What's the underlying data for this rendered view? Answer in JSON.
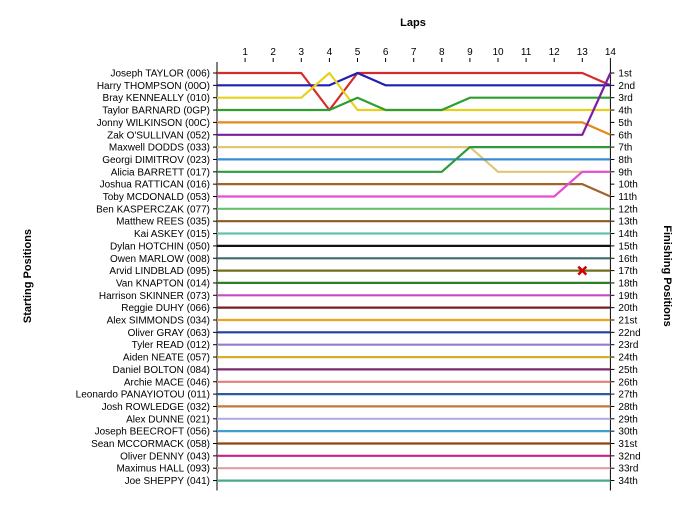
{
  "chart_data": {
    "type": "line",
    "title": "",
    "xlabel": "Laps",
    "ylabel_left": "Starting Positions",
    "ylabel_right": "Finishing Positions",
    "laps": [
      1,
      2,
      3,
      4,
      5,
      6,
      7,
      8,
      9,
      10,
      11,
      12,
      13,
      14
    ],
    "finishing_labels": [
      "1st",
      "2nd",
      "3rd",
      "4th",
      "5th",
      "6th",
      "7th",
      "8th",
      "9th",
      "10th",
      "11th",
      "12th",
      "13th",
      "14th",
      "15th",
      "16th",
      "17th",
      "18th",
      "19th",
      "20th",
      "21st",
      "22nd",
      "23rd",
      "24th",
      "25th",
      "26th",
      "27th",
      "28th",
      "29th",
      "30th",
      "31st",
      "32nd",
      "33rd",
      "34th"
    ],
    "drivers": [
      {
        "name": "Joseph TAYLOR (006)",
        "color": "#d42b2b",
        "positions": [
          1,
          1,
          1,
          4,
          1,
          1,
          1,
          1,
          1,
          1,
          1,
          1,
          1,
          2
        ]
      },
      {
        "name": "Harry THOMPSON (00O)",
        "color": "#1f1fb4",
        "positions": [
          2,
          2,
          2,
          2,
          1,
          2,
          2,
          2,
          2,
          2,
          2,
          2,
          2,
          2
        ]
      },
      {
        "name": "Bray KENNEALLY (010)",
        "color": "#e6d21e",
        "positions": [
          3,
          3,
          3,
          1,
          4,
          4,
          4,
          4,
          4,
          4,
          4,
          4,
          4,
          4
        ]
      },
      {
        "name": "Taylor BARNARD (0GP)",
        "color": "#2e9e2e",
        "positions": [
          4,
          4,
          4,
          4,
          3,
          4,
          4,
          4,
          3,
          3,
          3,
          3,
          3,
          3
        ]
      },
      {
        "name": "Jonny WILKINSON (00C)",
        "color": "#e8861a",
        "positions": [
          5,
          5,
          5,
          5,
          5,
          5,
          5,
          5,
          5,
          5,
          5,
          5,
          5,
          6
        ]
      },
      {
        "name": "Zak O'SULLIVAN (052)",
        "color": "#7a1f9e",
        "positions": [
          6,
          6,
          6,
          6,
          6,
          6,
          6,
          6,
          6,
          6,
          6,
          6,
          6,
          1
        ]
      },
      {
        "name": "Maxwell DODDS (033)",
        "color": "#e0c676",
        "positions": [
          7,
          7,
          7,
          7,
          7,
          7,
          7,
          7,
          7,
          9,
          9,
          9,
          9,
          9
        ]
      },
      {
        "name": "Georgi DIMITROV (023)",
        "color": "#3a8bd1",
        "positions": [
          8,
          8,
          8,
          8,
          8,
          8,
          8,
          8,
          8,
          8,
          8,
          8,
          8,
          8
        ]
      },
      {
        "name": "Alicia BARRETT (017)",
        "color": "#2d9b3a",
        "positions": [
          9,
          9,
          9,
          9,
          9,
          9,
          9,
          9,
          7,
          7,
          7,
          7,
          7,
          7
        ]
      },
      {
        "name": "Joshua RATTICAN (016)",
        "color": "#a0642a",
        "positions": [
          10,
          10,
          10,
          10,
          10,
          10,
          10,
          10,
          10,
          10,
          10,
          10,
          10,
          11
        ]
      },
      {
        "name": "Toby MCDONALD (053)",
        "color": "#e64cd6",
        "positions": [
          11,
          11,
          11,
          11,
          11,
          11,
          11,
          11,
          11,
          11,
          11,
          11,
          9,
          9
        ]
      },
      {
        "name": "Ben KASPERCZAK (077)",
        "color": "#6bbf6b",
        "positions": [
          12,
          12,
          12,
          12,
          12,
          12,
          12,
          12,
          12,
          12,
          12,
          12,
          12,
          12
        ]
      },
      {
        "name": "Matthew REES (035)",
        "color": "#8c5a1e",
        "positions": [
          13,
          13,
          13,
          13,
          13,
          13,
          13,
          13,
          13,
          13,
          13,
          13,
          13,
          13
        ]
      },
      {
        "name": "Kai ASKEY (015)",
        "color": "#61c2b0",
        "positions": [
          14,
          14,
          14,
          14,
          14,
          14,
          14,
          14,
          14,
          14,
          14,
          14,
          14,
          14
        ]
      },
      {
        "name": "Dylan HOTCHIN (050)",
        "color": "#111111",
        "positions": [
          15,
          15,
          15,
          15,
          15,
          15,
          15,
          15,
          15,
          15,
          15,
          15,
          15,
          15
        ]
      },
      {
        "name": "Owen MARLOW (008)",
        "color": "#3b6b6b",
        "positions": [
          16,
          16,
          16,
          16,
          16,
          16,
          16,
          16,
          16,
          16,
          16,
          16,
          16,
          16
        ]
      },
      {
        "name": "Arvid LINDBLAD (095)",
        "color": "#6f6f1e",
        "positions": [
          17,
          17,
          17,
          17,
          17,
          17,
          17,
          17,
          17,
          17,
          17,
          17,
          17,
          17
        ]
      },
      {
        "name": "Van KNAPTON (014)",
        "color": "#2a7f2a",
        "positions": [
          18,
          18,
          18,
          18,
          18,
          18,
          18,
          18,
          18,
          18,
          18,
          18,
          18,
          18
        ]
      },
      {
        "name": "Harrison SKINNER (073)",
        "color": "#c54cc5",
        "positions": [
          19,
          19,
          19,
          19,
          19,
          19,
          19,
          19,
          19,
          19,
          19,
          19,
          19,
          19
        ]
      },
      {
        "name": "Reggie DUHY (066)",
        "color": "#7b1d1d",
        "positions": [
          20,
          20,
          20,
          20,
          20,
          20,
          20,
          20,
          20,
          20,
          20,
          20,
          20,
          20
        ]
      },
      {
        "name": "Alex SIMMONDS (034)",
        "color": "#e8a31a",
        "positions": [
          21,
          21,
          21,
          21,
          21,
          21,
          21,
          21,
          21,
          21,
          21,
          21,
          21,
          21
        ]
      },
      {
        "name": "Oliver GRAY (063)",
        "color": "#1f3fa0",
        "positions": [
          22,
          22,
          22,
          22,
          22,
          22,
          22,
          22,
          22,
          22,
          22,
          22,
          22,
          22
        ]
      },
      {
        "name": "Tyler READ (012)",
        "color": "#9a7acb",
        "positions": [
          23,
          23,
          23,
          23,
          23,
          23,
          23,
          23,
          23,
          23,
          23,
          23,
          23,
          23
        ]
      },
      {
        "name": "Aiden NEATE (057)",
        "color": "#d2b02a",
        "positions": [
          24,
          24,
          24,
          24,
          24,
          24,
          24,
          24,
          24,
          24,
          24,
          24,
          24,
          24
        ]
      },
      {
        "name": "Daniel BOLTON (084)",
        "color": "#7a2a6e",
        "positions": [
          25,
          25,
          25,
          25,
          25,
          25,
          25,
          25,
          25,
          25,
          25,
          25,
          25,
          25
        ]
      },
      {
        "name": "Archie MACE (046)",
        "color": "#e87b7b",
        "positions": [
          26,
          26,
          26,
          26,
          26,
          26,
          26,
          26,
          26,
          26,
          26,
          26,
          26,
          26
        ]
      },
      {
        "name": "Leonardo PANAYIOTOU (011)",
        "color": "#2a5aa0",
        "positions": [
          27,
          27,
          27,
          27,
          27,
          27,
          27,
          27,
          27,
          27,
          27,
          27,
          27,
          27
        ]
      },
      {
        "name": "Josh ROWLEDGE (032)",
        "color": "#c07a3a",
        "positions": [
          28,
          28,
          28,
          28,
          28,
          28,
          28,
          28,
          28,
          28,
          28,
          28,
          28,
          28
        ]
      },
      {
        "name": "Alex DUNNE (021)",
        "color": "#b0b0e0",
        "positions": [
          29,
          29,
          29,
          29,
          29,
          29,
          29,
          29,
          29,
          29,
          29,
          29,
          29,
          29
        ]
      },
      {
        "name": "Joseph BEECROFT (056)",
        "color": "#3aa0d1",
        "positions": [
          30,
          30,
          30,
          30,
          30,
          30,
          30,
          30,
          30,
          30,
          30,
          30,
          30,
          30
        ]
      },
      {
        "name": "Sean MCCORMACK (058)",
        "color": "#8b4513",
        "positions": [
          31,
          31,
          31,
          31,
          31,
          31,
          31,
          31,
          31,
          31,
          31,
          31,
          31,
          31
        ]
      },
      {
        "name": "Oliver DENNY (043)",
        "color": "#cc1f8a",
        "positions": [
          32,
          32,
          32,
          32,
          32,
          32,
          32,
          32,
          32,
          32,
          32,
          32,
          32,
          32
        ]
      },
      {
        "name": "Maximus HALL (093)",
        "color": "#e0a0a0",
        "positions": [
          33,
          33,
          33,
          33,
          33,
          33,
          33,
          33,
          33,
          33,
          33,
          33,
          33,
          33
        ]
      },
      {
        "name": "Joe SHEPPY (041)",
        "color": "#4aa88a",
        "positions": [
          34,
          34,
          34,
          34,
          34,
          34,
          34,
          34,
          34,
          34,
          34,
          34,
          34,
          34
        ]
      }
    ]
  }
}
